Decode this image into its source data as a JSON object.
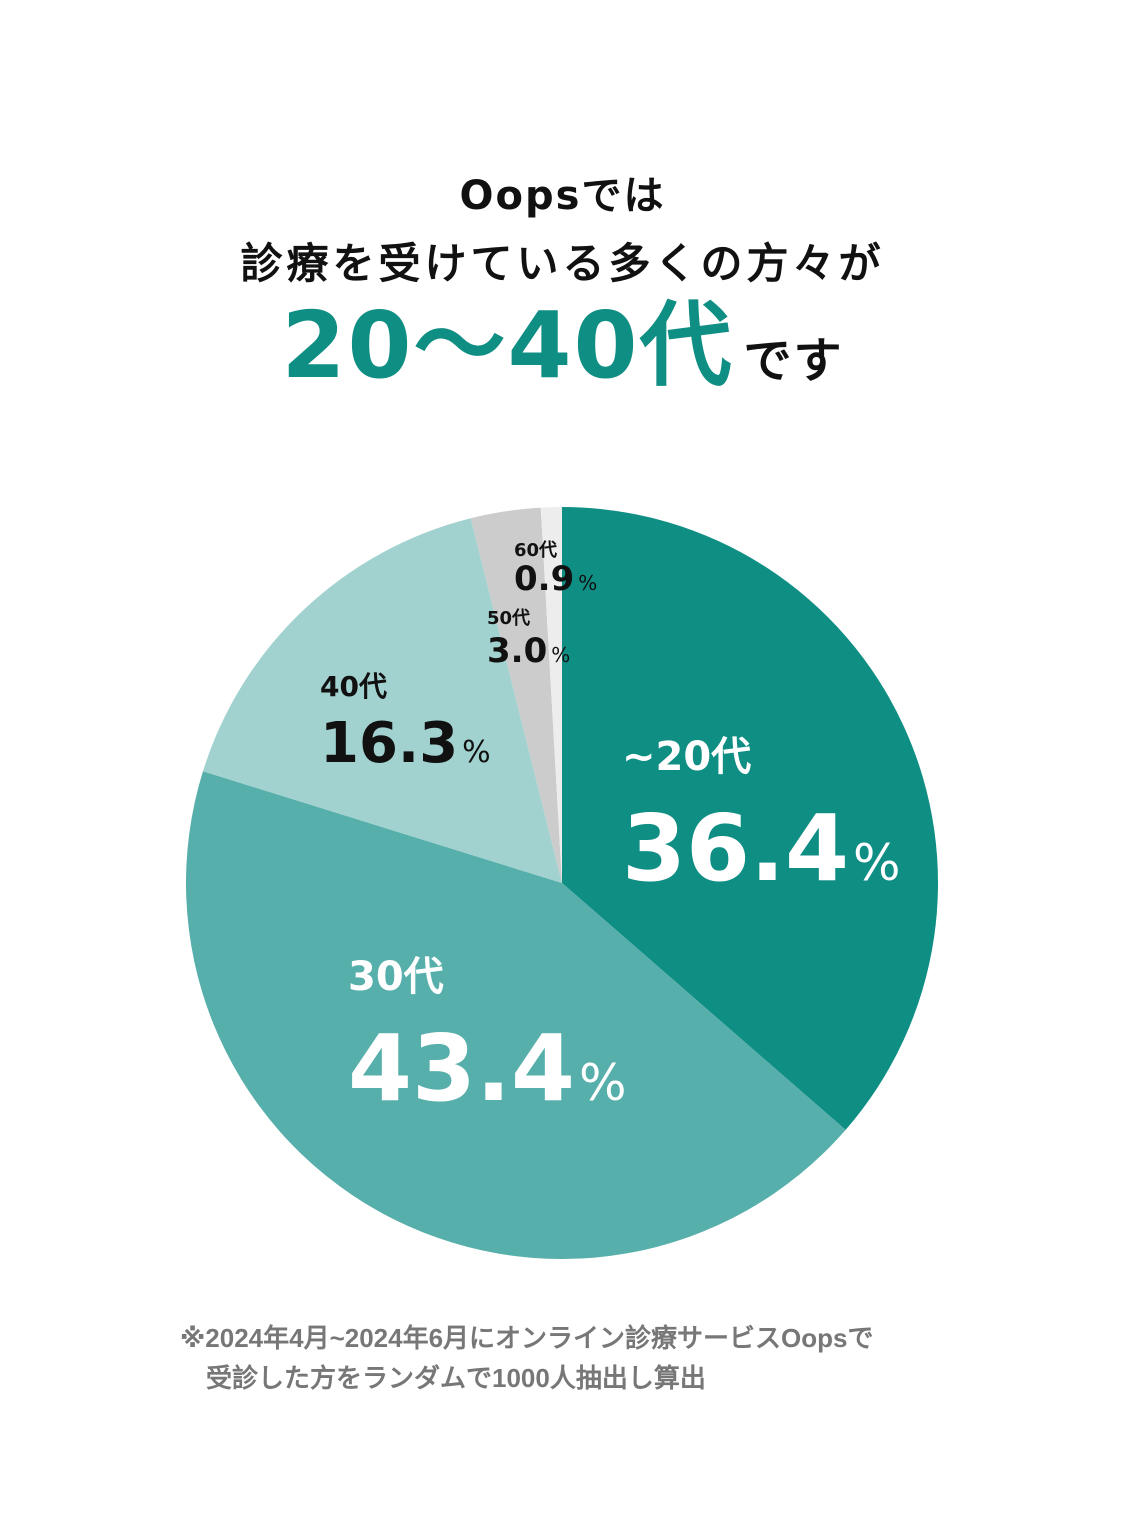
{
  "header": {
    "line1": "Oopsでは",
    "line2": "診療を受けている多くの方々が",
    "highlight": "20～40代",
    "highlight_tail": "です"
  },
  "chart_data": {
    "type": "pie",
    "start": "12 o'clock, clockwise",
    "slices": [
      {
        "label": "~20代",
        "percent_text": "36.4",
        "value": 36.4,
        "color": "#0f8e84"
      },
      {
        "label": "30代",
        "percent_text": "43.4",
        "value": 43.4,
        "color": "#57afab"
      },
      {
        "label": "40代",
        "percent_text": "16.3",
        "value": 16.3,
        "color": "#a1d2cf"
      },
      {
        "label": "50代",
        "percent_text": "3.0",
        "value": 3.0,
        "color": "#cccccc"
      },
      {
        "label": "60代",
        "percent_text": "0.9",
        "value": 0.9,
        "color": "#ededed"
      }
    ],
    "percent_sign": "%"
  },
  "footnote": {
    "line1": "※2024年4月~2024年6月にオンライン診療サービスOopsで",
    "line2": "受診した方をランダムで1000人抽出し算出"
  },
  "colors": {
    "accent": "#0f8e84",
    "text": "#111111",
    "footnote": "#777777"
  }
}
